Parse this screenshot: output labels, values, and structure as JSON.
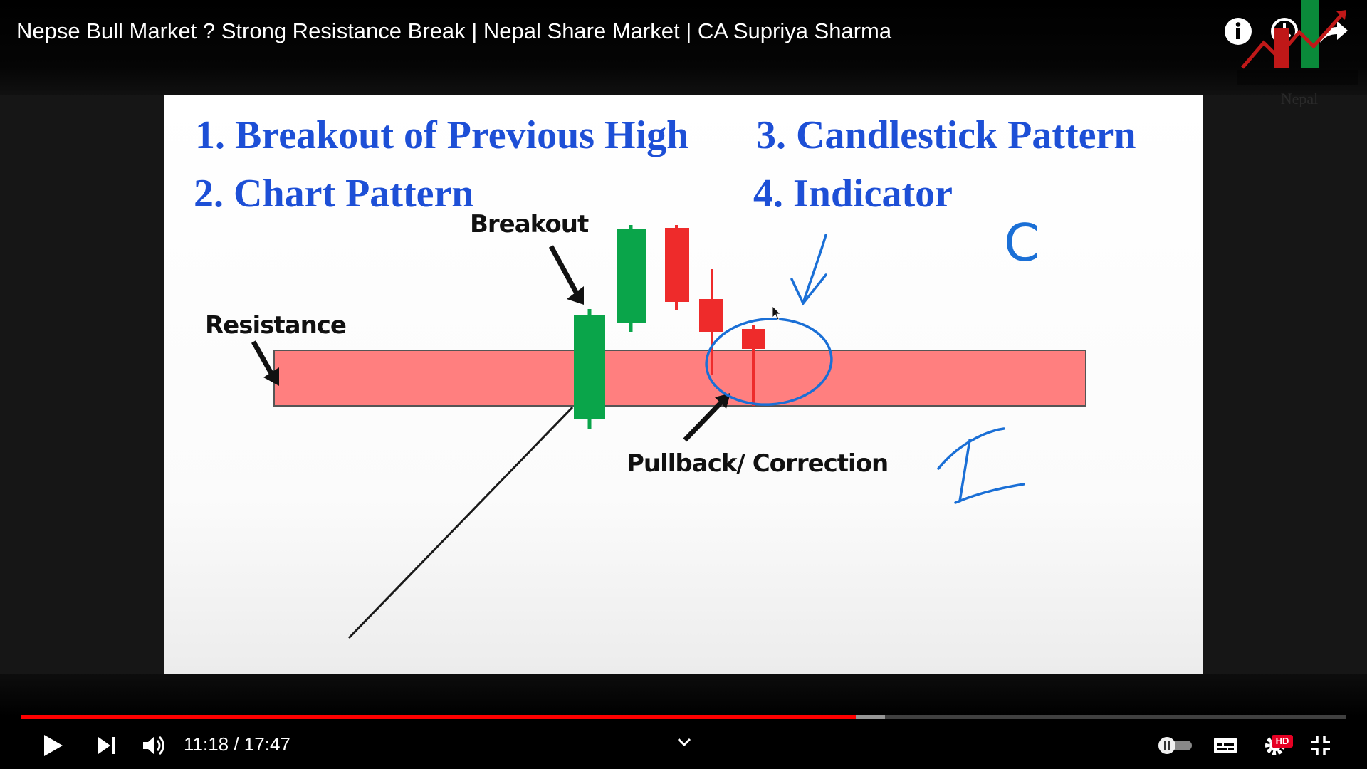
{
  "video": {
    "title": "Nepse Bull Market ? Strong Resistance Break | Nepal Share Market | CA Supriya Sharma"
  },
  "channel_logo": {
    "label": "Nepal",
    "alt": "Nepal"
  },
  "slide": {
    "headings": [
      "1. Breakout of Previous High",
      "3. Candlestick Pattern",
      "2. Chart Pattern",
      "4. Indicator"
    ],
    "labels": {
      "breakout": "Breakout",
      "resistance": "Resistance",
      "pullback": "Pullback/ Correction"
    },
    "handwriting": {
      "c": "C",
      "i": "I"
    },
    "colors": {
      "heading": "#1d4fd6",
      "resistance_zone": "#ff7f7f",
      "bull_candle": "#0aa54a",
      "bear_candle": "#ee2b2b",
      "annotation": "#1a6fd6"
    }
  },
  "player": {
    "time": "11:18 / 17:47",
    "progress_played": 0.63,
    "progress_buffered": 0.652,
    "quality_badge": "HD",
    "icons": [
      "info-icon",
      "watch-later-icon",
      "share-icon",
      "play-icon",
      "next-icon",
      "volume-icon",
      "chevron-down-icon",
      "autoplay-toggle-icon",
      "subtitles-icon",
      "settings-icon",
      "exit-fullscreen-icon"
    ],
    "accent": "#ff0000"
  }
}
